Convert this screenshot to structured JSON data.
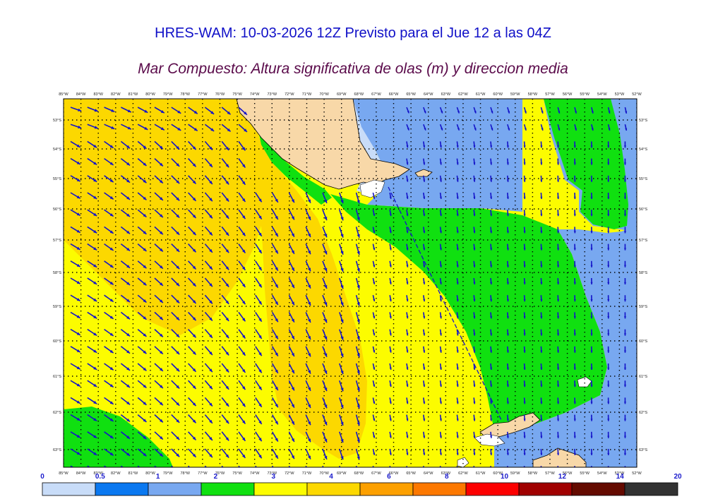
{
  "title": "HRES-WAM: 10-03-2026 12Z Previsto para el Jue 12 a las 04Z",
  "subtitle": "Mar Compuesto: Altura significativa de olas (m) y direccion media",
  "lon_labels": [
    "85°W",
    "84°W",
    "83°W",
    "82°W",
    "81°W",
    "80°W",
    "79°W",
    "78°W",
    "77°W",
    "76°W",
    "75°W",
    "74°W",
    "73°W",
    "72°W",
    "71°W",
    "70°W",
    "69°W",
    "68°W",
    "67°W",
    "66°W",
    "65°W",
    "64°W",
    "63°W",
    "62°W",
    "61°W",
    "60°W",
    "59°W",
    "58°W",
    "57°W",
    "56°W",
    "55°W",
    "54°W",
    "53°W",
    "52°W"
  ],
  "lat_labels": [
    "53°S",
    "54°S",
    "55°S",
    "56°S",
    "57°S",
    "58°S",
    "59°S",
    "60°S",
    "61°S",
    "62°S",
    "63°S"
  ],
  "colorbar": {
    "ticks": [
      "0",
      "0.5",
      "1",
      "2",
      "3",
      "4",
      "6",
      "8",
      "10",
      "12",
      "14",
      "20"
    ],
    "colors": [
      "#c8dcf8",
      "#0a78f0",
      "#78a8f0",
      "#10e010",
      "#fcfc00",
      "#fcd800",
      "#fca000",
      "#fc7800",
      "#fc0000",
      "#a00000",
      "#640a00",
      "#323232"
    ]
  },
  "colors": {
    "land": "#f8d8a8",
    "ice": "#ffffff",
    "arrow": "#1414c8"
  }
}
